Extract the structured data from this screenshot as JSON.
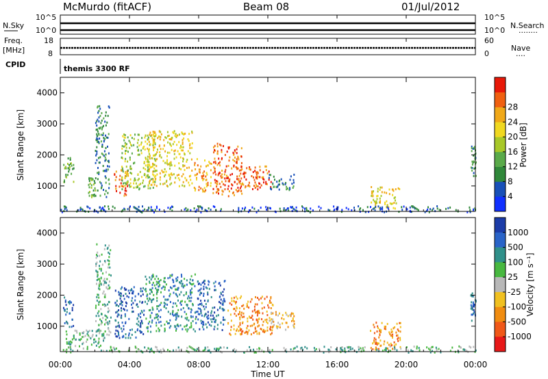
{
  "header": {
    "station": "McMurdo (fitACF)",
    "beam": "Beam 08",
    "date": "01/Jul/2012"
  },
  "nsky_panel": {
    "left_label": "N.Sky",
    "left_ticks": [
      "10^5",
      "10^0"
    ],
    "right_label": "N.Search",
    "right_ticks": [
      "10^5",
      "10^0"
    ],
    "right_dots": "........"
  },
  "freq_panel": {
    "left_label_1": "Freq.",
    "left_label_2": "[MHz]",
    "left_ticks": [
      "18",
      "8"
    ],
    "right_label": "Nave",
    "right_ticks": [
      "60",
      "0"
    ],
    "right_dots": "....",
    "cpid_label": "CPID"
  },
  "cpid_panel": {
    "program": "themis 3300 RF"
  },
  "chart_data": [
    {
      "type": "heatmap",
      "name": "power",
      "ylabel": "Slant Range [km]",
      "yticks": [
        "1000",
        "2000",
        "3000",
        "4000"
      ],
      "ylim": [
        180,
        4500
      ],
      "xlim": [
        0,
        24
      ],
      "colorbar": {
        "label": "Power [dB]",
        "ticks": [
          "4",
          "8",
          "12",
          "16",
          "20",
          "24",
          "28"
        ],
        "colors": [
          "#1030ff",
          "#1850b8",
          "#30883a",
          "#5aaa4a",
          "#a8c828",
          "#f0d820",
          "#f0a818",
          "#f06010",
          "#e81808"
        ]
      },
      "echo_regions": [
        {
          "t0": 0.15,
          "t1": 0.75,
          "r0": 1100,
          "r1": 2000,
          "level": 3
        },
        {
          "t0": 1.6,
          "t1": 2.0,
          "r0": 650,
          "r1": 1300,
          "level": 3
        },
        {
          "t0": 2.0,
          "t1": 2.8,
          "r0": 650,
          "r1": 3600,
          "level": 2
        },
        {
          "t0": 3.1,
          "t1": 3.9,
          "r0": 700,
          "r1": 1600,
          "level": 7
        },
        {
          "t0": 3.5,
          "t1": 5.5,
          "r0": 900,
          "r1": 2700,
          "level": 4
        },
        {
          "t0": 5.0,
          "t1": 7.6,
          "r0": 1000,
          "r1": 2800,
          "level": 5
        },
        {
          "t0": 7.7,
          "t1": 8.7,
          "r0": 850,
          "r1": 1900,
          "level": 6
        },
        {
          "t0": 8.8,
          "t1": 10.5,
          "r0": 700,
          "r1": 2400,
          "level": 7
        },
        {
          "t0": 10.3,
          "t1": 12.2,
          "r0": 900,
          "r1": 1700,
          "level": 7
        },
        {
          "t0": 12.0,
          "t1": 13.5,
          "r0": 900,
          "r1": 1400,
          "level": 2
        },
        {
          "t0": 17.9,
          "t1": 19.6,
          "r0": 300,
          "r1": 1000,
          "level": 5
        },
        {
          "t0": 23.7,
          "t1": 24.0,
          "r0": 1300,
          "r1": 2300,
          "level": 2
        },
        {
          "t0": 0.0,
          "t1": 24.0,
          "r0": 180,
          "r1": 380,
          "level": 1
        }
      ]
    },
    {
      "type": "heatmap",
      "name": "velocity",
      "ylabel": "Slant Range [km]",
      "yticks": [
        "1000",
        "2000",
        "3000",
        "4000"
      ],
      "ylim": [
        180,
        4500
      ],
      "xlim": [
        0,
        24
      ],
      "colorbar": {
        "label": "Velocity [m s⁻¹]",
        "ticks": [
          "1000",
          "500",
          "100",
          "25",
          "-25",
          "-100",
          "-500",
          "-1000"
        ],
        "colors": [
          "#1c3ca8",
          "#2a64c8",
          "#30908a",
          "#48b840",
          "#b8b8b8",
          "#f0c020",
          "#f08c10",
          "#f05818",
          "#e81818"
        ]
      },
      "echo_regions": [
        {
          "t0": 0.15,
          "t1": 0.75,
          "r0": 1000,
          "r1": 2000,
          "level": 1
        },
        {
          "t0": 0.3,
          "t1": 2.5,
          "r0": 300,
          "r1": 900,
          "level": 3
        },
        {
          "t0": 2.0,
          "t1": 2.9,
          "r0": 600,
          "r1": 3700,
          "level": 3
        },
        {
          "t0": 3.1,
          "t1": 4.8,
          "r0": 650,
          "r1": 2300,
          "level": 1
        },
        {
          "t0": 4.8,
          "t1": 7.8,
          "r0": 850,
          "r1": 2700,
          "level": 2
        },
        {
          "t0": 7.8,
          "t1": 9.5,
          "r0": 900,
          "r1": 2500,
          "level": 1
        },
        {
          "t0": 9.6,
          "t1": 12.3,
          "r0": 750,
          "r1": 2000,
          "level": 6
        },
        {
          "t0": 12.0,
          "t1": 13.5,
          "r0": 900,
          "r1": 1500,
          "level": 5
        },
        {
          "t0": 17.9,
          "t1": 19.7,
          "r0": 250,
          "r1": 1150,
          "level": 6
        },
        {
          "t0": 23.7,
          "t1": 24.0,
          "r0": 1200,
          "r1": 2100,
          "level": 1
        },
        {
          "t0": 0.0,
          "t1": 24.0,
          "r0": 180,
          "r1": 380,
          "level": 3
        }
      ]
    }
  ],
  "time_axis": {
    "ticks": [
      "00:00",
      "04:00",
      "08:00",
      "12:00",
      "16:00",
      "20:00",
      "00:00"
    ],
    "label": "Time UT"
  }
}
